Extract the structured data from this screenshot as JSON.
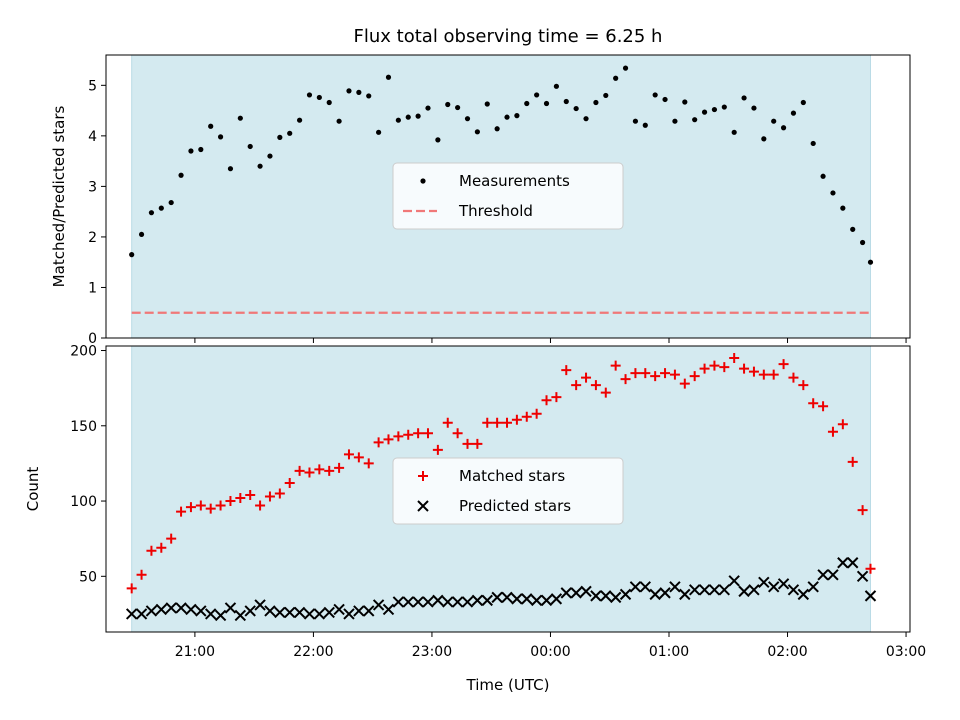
{
  "chart_data": [
    {
      "type": "scatter",
      "title": "Flux total observing time = 6.25 h",
      "xlabel": "",
      "ylabel": "Matched/Predicted stars",
      "ylim": [
        0,
        5.6
      ],
      "yticks": [
        0,
        1,
        2,
        3,
        4,
        5
      ],
      "xaxis": "time",
      "xlim": [
        "20:15",
        "03:02"
      ],
      "shaded_region": [
        "20:28",
        "02:42"
      ],
      "shade_color": "#d4eaf0",
      "legend_position": "center",
      "legend": [
        "Measurements",
        "Threshold"
      ],
      "series": [
        {
          "name": "Measurements",
          "marker": "dot",
          "color": "#000000",
          "x": [
            "20:28",
            "20:33",
            "20:38",
            "20:43",
            "20:48",
            "20:53",
            "20:58",
            "21:03",
            "21:08",
            "21:13",
            "21:18",
            "21:23",
            "21:28",
            "21:33",
            "21:38",
            "21:43",
            "21:48",
            "21:53",
            "21:58",
            "22:03",
            "22:08",
            "22:13",
            "22:18",
            "22:23",
            "22:28",
            "22:33",
            "22:38",
            "22:43",
            "22:48",
            "22:53",
            "22:58",
            "23:03",
            "23:08",
            "23:13",
            "23:18",
            "23:23",
            "23:28",
            "23:33",
            "23:38",
            "23:43",
            "23:48",
            "23:53",
            "23:58",
            "00:03",
            "00:08",
            "00:13",
            "00:18",
            "00:23",
            "00:28",
            "00:33",
            "00:38",
            "00:43",
            "00:48",
            "00:53",
            "00:58",
            "01:03",
            "01:08",
            "01:13",
            "01:18",
            "01:23",
            "01:28",
            "01:33",
            "01:38",
            "01:43",
            "01:48",
            "01:53",
            "01:58",
            "02:03",
            "02:08",
            "02:13",
            "02:18",
            "02:23",
            "02:28",
            "02:33",
            "02:38",
            "02:42"
          ],
          "values": [
            1.65,
            2.05,
            2.48,
            2.57,
            2.68,
            3.22,
            3.7,
            3.73,
            4.19,
            3.98,
            3.35,
            4.35,
            3.79,
            3.4,
            3.6,
            3.97,
            4.05,
            4.31,
            4.81,
            4.76,
            4.66,
            4.29,
            4.89,
            4.86,
            4.79,
            4.07,
            5.16,
            4.31,
            4.37,
            4.39,
            4.55,
            3.92,
            4.62,
            4.56,
            4.34,
            4.08,
            4.63,
            4.14,
            4.37,
            4.4,
            4.64,
            4.81,
            4.64,
            4.98,
            4.68,
            4.54,
            4.34,
            4.66,
            4.8,
            5.14,
            5.34,
            4.29,
            4.21,
            4.81,
            4.72,
            4.29,
            4.67,
            4.32,
            4.47,
            4.52,
            4.57,
            4.07,
            4.75,
            4.55,
            3.94,
            4.29,
            4.16,
            4.45,
            4.66,
            3.85,
            3.2,
            2.87,
            2.57,
            2.15,
            1.89,
            1.5
          ]
        },
        {
          "name": "Threshold",
          "style": "dashed",
          "color": "#f07878",
          "x": [
            "20:28",
            "02:42"
          ],
          "values": [
            0.5,
            0.5
          ]
        }
      ]
    },
    {
      "type": "scatter",
      "title": "",
      "xlabel": "Time (UTC)",
      "ylabel": "Count",
      "ylim": [
        13,
        203
      ],
      "yticks": [
        50,
        100,
        150,
        200
      ],
      "xaxis": "time",
      "xlim": [
        "20:15",
        "03:02"
      ],
      "xticks": [
        "21:00",
        "22:00",
        "23:00",
        "00:00",
        "01:00",
        "02:00",
        "03:00"
      ],
      "shaded_region": [
        "20:28",
        "02:42"
      ],
      "shade_color": "#d4eaf0",
      "legend_position": "center",
      "legend": [
        "Matched stars",
        "Predicted stars"
      ],
      "series": [
        {
          "name": "Matched stars",
          "marker": "plus",
          "color": "#ee0000",
          "x": [
            "20:28",
            "20:33",
            "20:38",
            "20:43",
            "20:48",
            "20:53",
            "20:58",
            "21:03",
            "21:08",
            "21:13",
            "21:18",
            "21:23",
            "21:28",
            "21:33",
            "21:38",
            "21:43",
            "21:48",
            "21:53",
            "21:58",
            "22:03",
            "22:08",
            "22:13",
            "22:18",
            "22:23",
            "22:28",
            "22:33",
            "22:38",
            "22:43",
            "22:48",
            "22:53",
            "22:58",
            "23:03",
            "23:08",
            "23:13",
            "23:18",
            "23:23",
            "23:28",
            "23:33",
            "23:38",
            "23:43",
            "23:48",
            "23:53",
            "23:58",
            "00:03",
            "00:08",
            "00:13",
            "00:18",
            "00:23",
            "00:28",
            "00:33",
            "00:38",
            "00:43",
            "00:48",
            "00:53",
            "00:58",
            "01:03",
            "01:08",
            "01:13",
            "01:18",
            "01:23",
            "01:28",
            "01:33",
            "01:38",
            "01:43",
            "01:48",
            "01:53",
            "01:58",
            "02:03",
            "02:08",
            "02:13",
            "02:18",
            "02:23",
            "02:28",
            "02:33",
            "02:38",
            "02:42"
          ],
          "values": [
            42,
            51,
            67,
            69,
            75,
            93,
            96,
            97,
            95,
            97,
            100,
            102,
            104,
            97,
            103,
            105,
            112,
            120,
            119,
            121,
            120,
            122,
            131,
            129,
            125,
            139,
            141,
            143,
            144,
            145,
            145,
            134,
            152,
            145,
            138,
            138,
            152,
            152,
            152,
            154,
            156,
            158,
            167,
            169,
            187,
            177,
            182,
            177,
            172,
            190,
            181,
            185,
            185,
            183,
            185,
            184,
            178,
            183,
            188,
            190,
            189,
            195,
            188,
            186,
            184,
            184,
            191,
            182,
            177,
            165,
            163,
            146,
            151,
            126,
            94,
            55
          ]
        },
        {
          "name": "Predicted stars",
          "marker": "x",
          "color": "#000000",
          "x": [
            "20:28",
            "20:33",
            "20:38",
            "20:43",
            "20:48",
            "20:53",
            "20:58",
            "21:03",
            "21:08",
            "21:13",
            "21:18",
            "21:23",
            "21:28",
            "21:33",
            "21:38",
            "21:43",
            "21:48",
            "21:53",
            "21:58",
            "22:03",
            "22:08",
            "22:13",
            "22:18",
            "22:23",
            "22:28",
            "22:33",
            "22:38",
            "22:43",
            "22:48",
            "22:53",
            "22:58",
            "23:03",
            "23:08",
            "23:13",
            "23:18",
            "23:23",
            "23:28",
            "23:33",
            "23:38",
            "23:43",
            "23:48",
            "23:53",
            "23:58",
            "00:03",
            "00:08",
            "00:13",
            "00:18",
            "00:23",
            "00:28",
            "00:33",
            "00:38",
            "00:43",
            "00:48",
            "00:53",
            "00:58",
            "01:03",
            "01:08",
            "01:13",
            "01:18",
            "01:23",
            "01:28",
            "01:33",
            "01:38",
            "01:43",
            "01:48",
            "01:53",
            "01:58",
            "02:03",
            "02:08",
            "02:13",
            "02:18",
            "02:23",
            "02:28",
            "02:33",
            "02:38",
            "02:42"
          ],
          "values": [
            25,
            25,
            27,
            28,
            29,
            29,
            28,
            27,
            25,
            24,
            29,
            24,
            27,
            31,
            27,
            26,
            26,
            26,
            25,
            25,
            26,
            28,
            25,
            27,
            27,
            31,
            28,
            33,
            33,
            33,
            33,
            34,
            33,
            33,
            33,
            34,
            34,
            36,
            36,
            35,
            35,
            34,
            34,
            35,
            39,
            39,
            40,
            37,
            37,
            36,
            38,
            43,
            43,
            38,
            39,
            43,
            38,
            41,
            41,
            41,
            41,
            47,
            40,
            41,
            46,
            43,
            45,
            41,
            38,
            43,
            51,
            51,
            59,
            59,
            50,
            37
          ]
        }
      ]
    }
  ]
}
